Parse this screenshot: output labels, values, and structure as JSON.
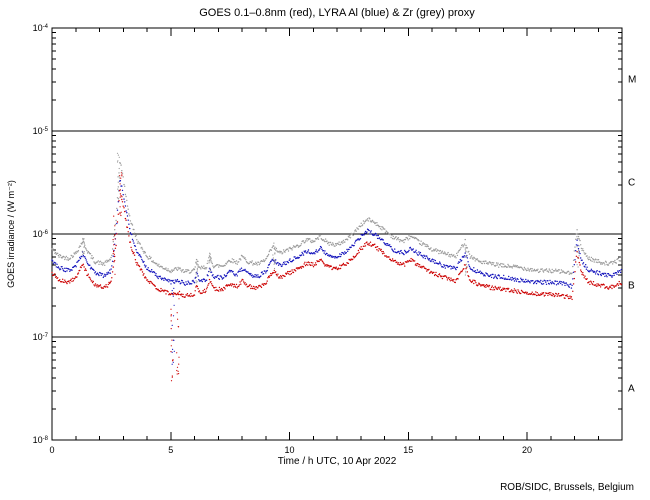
{
  "chart_data": {
    "type": "scatter",
    "title": "GOES 0.1–0.8nm (red), LYRA Al (blue) & Zr (grey) proxy",
    "xlabel": "Time / h UTC, 10 Apr 2022",
    "ylabel": "GOES irradiance / (W m⁻²)",
    "credit": "ROB/SIDC, Brussels, Belgium",
    "xlim": [
      0,
      24
    ],
    "x_major_ticks": [
      0,
      5,
      10,
      15,
      20
    ],
    "x_minor_step": 1,
    "y_exp_range": [
      -4,
      -8
    ],
    "y_tick_exponents": [
      -4,
      -5,
      -6,
      -7,
      -8
    ],
    "hline_exponents": [
      -5,
      -6,
      -7
    ],
    "flare_classes": [
      {
        "label": "M",
        "exponent": -4.5
      },
      {
        "label": "C",
        "exponent": -5.5
      },
      {
        "label": "B",
        "exponent": -6.5
      },
      {
        "label": "A",
        "exponent": -7.5
      }
    ],
    "colors": {
      "red": "#cc0000",
      "blue": "#1111bb",
      "grey": "#999999",
      "frame": "#000000"
    },
    "value_scale": 1e-07,
    "x": [
      0,
      0.3,
      0.7,
      1,
      1.3,
      1.5,
      1.8,
      2.2,
      2.5,
      2.7,
      2.85,
      2.95,
      3.1,
      3.3,
      3.6,
      4,
      4.5,
      5,
      5.3,
      5.6,
      6,
      6.1,
      6.2,
      6.5,
      6.65,
      6.8,
      7.2,
      7.5,
      7.8,
      8,
      8.3,
      8.7,
      9,
      9.3,
      9.6,
      10,
      10.4,
      10.7,
      11,
      11.3,
      11.6,
      12,
      12.4,
      12.7,
      13,
      13.3,
      13.6,
      14,
      14.4,
      14.8,
      15.1,
      15.4,
      16,
      16.5,
      17,
      17.4,
      17.6,
      18,
      18.5,
      19,
      19.5,
      20,
      20.5,
      21,
      21.5,
      21.9,
      22.1,
      22.3,
      22.6,
      23,
      23.5,
      24
    ],
    "series": [
      {
        "name": "GOES 0.1-0.8nm",
        "color_key": "red",
        "values": [
          4.2,
          3.6,
          3.4,
          3.8,
          5,
          4,
          3.2,
          3,
          3.4,
          8,
          26,
          22,
          14,
          8,
          5,
          3.6,
          2.9,
          2.6,
          2.7,
          2.5,
          2.6,
          3.3,
          2.7,
          2.8,
          3.6,
          2.9,
          2.9,
          3.3,
          3.1,
          3.5,
          3.1,
          3,
          3.3,
          4.4,
          3.8,
          4.2,
          4.6,
          5.2,
          5,
          5.6,
          4.8,
          4.6,
          5.2,
          6,
          7.2,
          8.2,
          7.6,
          6.4,
          5.4,
          5,
          5.6,
          5,
          4.2,
          3.8,
          3.5,
          5,
          3.6,
          3.2,
          3,
          2.9,
          2.8,
          2.7,
          2.6,
          2.6,
          2.5,
          2.4,
          6.8,
          4.2,
          3.4,
          3.2,
          3,
          3.4
        ]
      },
      {
        "name": "LYRA Al proxy",
        "color_key": "blue",
        "values": [
          5.5,
          4.7,
          4.4,
          4.9,
          6.5,
          5.2,
          4.2,
          3.9,
          4.4,
          10.4,
          34,
          28,
          18,
          10.4,
          6.5,
          4.7,
          3.8,
          3.4,
          3.5,
          3.3,
          3.4,
          4.3,
          3.5,
          3.6,
          4.7,
          3.8,
          3.8,
          4.3,
          4,
          4.6,
          4,
          3.9,
          4.3,
          5.7,
          4.9,
          5.5,
          6,
          6.8,
          6.5,
          7.3,
          6.2,
          6,
          6.8,
          7.8,
          9.4,
          10.7,
          9.9,
          8.3,
          7,
          6.5,
          7.3,
          6.5,
          5.5,
          4.9,
          4.6,
          6.5,
          4.7,
          4.2,
          3.9,
          3.8,
          3.6,
          3.5,
          3.4,
          3.4,
          3.3,
          3.1,
          8.8,
          5.5,
          4.4,
          4.2,
          3.9,
          4.4
        ]
      },
      {
        "name": "LYRA Zr proxy",
        "color_key": "grey",
        "values": [
          7.1,
          6.1,
          5.8,
          6.5,
          8.5,
          6.8,
          5.4,
          5.1,
          5.8,
          13.6,
          50,
          42,
          24,
          13.6,
          8.5,
          6.1,
          4.9,
          4.4,
          4.6,
          4.3,
          4.4,
          5.6,
          4.6,
          4.8,
          6.1,
          4.9,
          4.9,
          5.6,
          5.3,
          6,
          5.3,
          5.1,
          5.6,
          7.5,
          6.5,
          7.1,
          7.8,
          8.8,
          8.5,
          9.5,
          8.2,
          7.8,
          8.8,
          10.2,
          12.2,
          13.9,
          12.9,
          10.9,
          9.2,
          8.5,
          9.5,
          8.5,
          7.1,
          6.5,
          6,
          8.5,
          6.1,
          5.4,
          5.1,
          4.9,
          4.8,
          4.6,
          4.4,
          4.4,
          4.3,
          4.1,
          11.6,
          7.1,
          5.8,
          5.4,
          5.1,
          5.8
        ]
      }
    ],
    "noise_spikes": [
      {
        "t": 1.32,
        "vmin": 5.5e-07,
        "vmax": 9.5e-07,
        "color_key": "grey"
      },
      {
        "t": 2.62,
        "vmin": 4e-07,
        "vmax": 1.5e-06,
        "color_key": "red"
      },
      {
        "t": 2.8,
        "vmin": 2e-06,
        "vmax": 6.2e-06,
        "color_key": "grey"
      },
      {
        "t": 2.9,
        "vmin": 1.5e-06,
        "vmax": 4.5e-06,
        "color_key": "red"
      },
      {
        "t": 5.05,
        "vmin": 3e-08,
        "vmax": 2.4e-07,
        "color_key": "red"
      },
      {
        "t": 5.1,
        "vmin": 5e-08,
        "vmax": 3e-07,
        "color_key": "blue"
      },
      {
        "t": 5.3,
        "vmin": 4e-08,
        "vmax": 2.6e-07,
        "color_key": "red"
      },
      {
        "t": 6.1,
        "vmin": 3.3e-07,
        "vmax": 6.2e-07,
        "color_key": "grey"
      },
      {
        "t": 6.65,
        "vmin": 3.5e-07,
        "vmax": 6.6e-07,
        "color_key": "grey"
      },
      {
        "t": 9.35,
        "vmin": 4.5e-07,
        "vmax": 8.2e-07,
        "color_key": "grey"
      },
      {
        "t": 17.45,
        "vmin": 4e-07,
        "vmax": 8e-07,
        "color_key": "grey"
      },
      {
        "t": 22.15,
        "vmin": 4.5e-07,
        "vmax": 1.05e-06,
        "color_key": "grey"
      }
    ]
  }
}
